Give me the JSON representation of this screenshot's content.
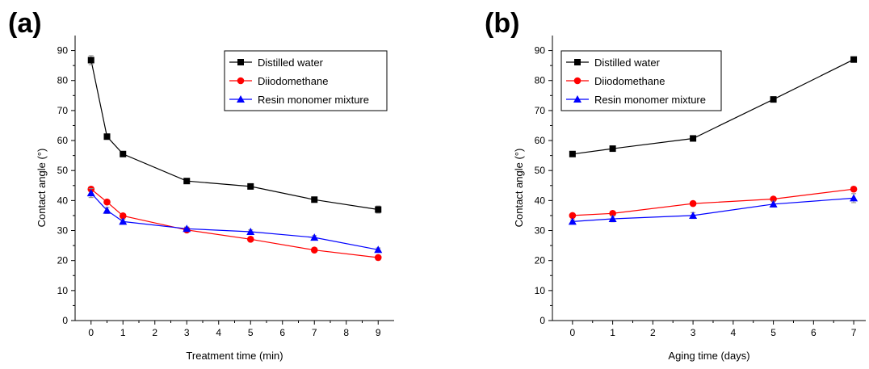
{
  "chart_data": [
    {
      "type": "line",
      "panel_label": "(a)",
      "xlabel": "Treatment time (min)",
      "ylabel": "Contact angle (°)",
      "xlim": [
        -0.5,
        9.5
      ],
      "ylim": [
        0,
        95
      ],
      "xticks": [
        0,
        1,
        2,
        3,
        4,
        5,
        6,
        7,
        8,
        9
      ],
      "yticks": [
        0,
        10,
        20,
        30,
        40,
        50,
        60,
        70,
        80,
        90
      ],
      "grid": false,
      "legend_position": "top-right",
      "series": [
        {
          "name": "Distilled water",
          "color": "#000000",
          "marker": "square",
          "x": [
            0,
            0.5,
            1,
            3,
            5,
            7,
            9
          ],
          "y": [
            86.8,
            61.3,
            55.5,
            46.5,
            44.7,
            40.3,
            37.0
          ],
          "err": [
            1.5,
            0.6,
            0.6,
            0.6,
            0.6,
            0.6,
            1.2
          ]
        },
        {
          "name": "Diiodomethane",
          "color": "#ff0000",
          "marker": "circle",
          "x": [
            0,
            0.5,
            1,
            3,
            5,
            7,
            9
          ],
          "y": [
            43.8,
            39.5,
            34.9,
            30.2,
            27.1,
            23.5,
            21.0
          ],
          "err": [
            0.8,
            0.6,
            0.6,
            0.6,
            0.6,
            0.6,
            0.8
          ]
        },
        {
          "name": "Resin monomer mixture",
          "color": "#0000ff",
          "marker": "triangle",
          "x": [
            0,
            0.5,
            1,
            3,
            5,
            7,
            9
          ],
          "y": [
            42.5,
            36.7,
            33.0,
            30.6,
            29.6,
            27.7,
            23.6
          ],
          "err": [
            1.5,
            1.0,
            0.8,
            0.6,
            0.6,
            0.6,
            0.6
          ]
        }
      ]
    },
    {
      "type": "line",
      "panel_label": "(b)",
      "xlabel": "Aging time (days)",
      "ylabel": "Contact angle (°)",
      "xlim": [
        -0.5,
        7.3
      ],
      "ylim": [
        0,
        95
      ],
      "xticks": [
        0,
        1,
        2,
        3,
        4,
        5,
        6,
        7
      ],
      "yticks": [
        0,
        10,
        20,
        30,
        40,
        50,
        60,
        70,
        80,
        90
      ],
      "grid": false,
      "legend_position": "top-right",
      "series": [
        {
          "name": "Distilled water",
          "color": "#000000",
          "marker": "square",
          "x": [
            0,
            1,
            3,
            5,
            7
          ],
          "y": [
            55.5,
            57.3,
            60.7,
            73.7,
            87.0
          ],
          "err": [
            0.6,
            0.6,
            0.6,
            0.6,
            0.6
          ]
        },
        {
          "name": "Diiodomethane",
          "color": "#ff0000",
          "marker": "circle",
          "x": [
            0,
            1,
            3,
            5,
            7
          ],
          "y": [
            35.0,
            35.7,
            39.0,
            40.5,
            43.8
          ],
          "err": [
            0.6,
            0.6,
            0.6,
            0.6,
            0.8
          ]
        },
        {
          "name": "Resin monomer mixture",
          "color": "#0000ff",
          "marker": "triangle",
          "x": [
            0,
            1,
            3,
            5,
            7
          ],
          "y": [
            33.0,
            33.9,
            35.0,
            38.8,
            40.8
          ],
          "err": [
            0.6,
            1.0,
            1.0,
            1.0,
            1.5
          ]
        }
      ]
    }
  ]
}
